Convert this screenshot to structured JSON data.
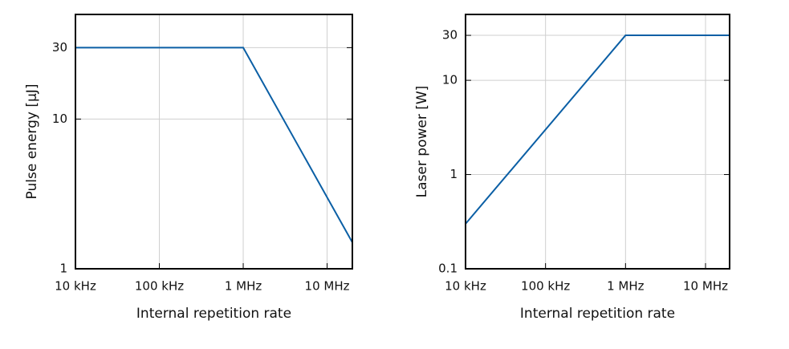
{
  "chart_data": [
    {
      "type": "line",
      "x_label": "Internal repetition rate",
      "y_label": "Pulse energy [µJ]",
      "x": [
        10000,
        1000000,
        20000000
      ],
      "series": [
        {
          "color": "#0b5fa5",
          "values": [
            30,
            30,
            1.5
          ]
        }
      ],
      "xlim": [
        10000,
        20000000
      ],
      "ylim": [
        1,
        50
      ],
      "log_x": true,
      "log_y": true,
      "grid": true,
      "xticks": [
        {
          "value": 10000,
          "label": "10 kHz"
        },
        {
          "value": 100000,
          "label": "100 kHz"
        },
        {
          "value": 1000000,
          "label": "1 MHz"
        },
        {
          "value": 10000000,
          "label": "10 MHz"
        }
      ],
      "yticks": [
        1,
        10,
        30
      ]
    },
    {
      "type": "line",
      "x_label": "Internal repetition rate",
      "y_label": "Laser power [W]",
      "x": [
        10000,
        1000000,
        20000000
      ],
      "series": [
        {
          "color": "#0b5fa5",
          "values": [
            0.3,
            30,
            30
          ]
        }
      ],
      "xlim": [
        10000,
        20000000
      ],
      "ylim": [
        0.1,
        50
      ],
      "log_x": true,
      "log_y": true,
      "grid": true,
      "xticks": [
        {
          "value": 10000,
          "label": "10 kHz"
        },
        {
          "value": 100000,
          "label": "100 kHz"
        },
        {
          "value": 1000000,
          "label": "1 MHz"
        },
        {
          "value": 10000000,
          "label": "10 MHz"
        }
      ],
      "yticks": [
        0.1,
        1,
        10,
        30
      ]
    }
  ]
}
